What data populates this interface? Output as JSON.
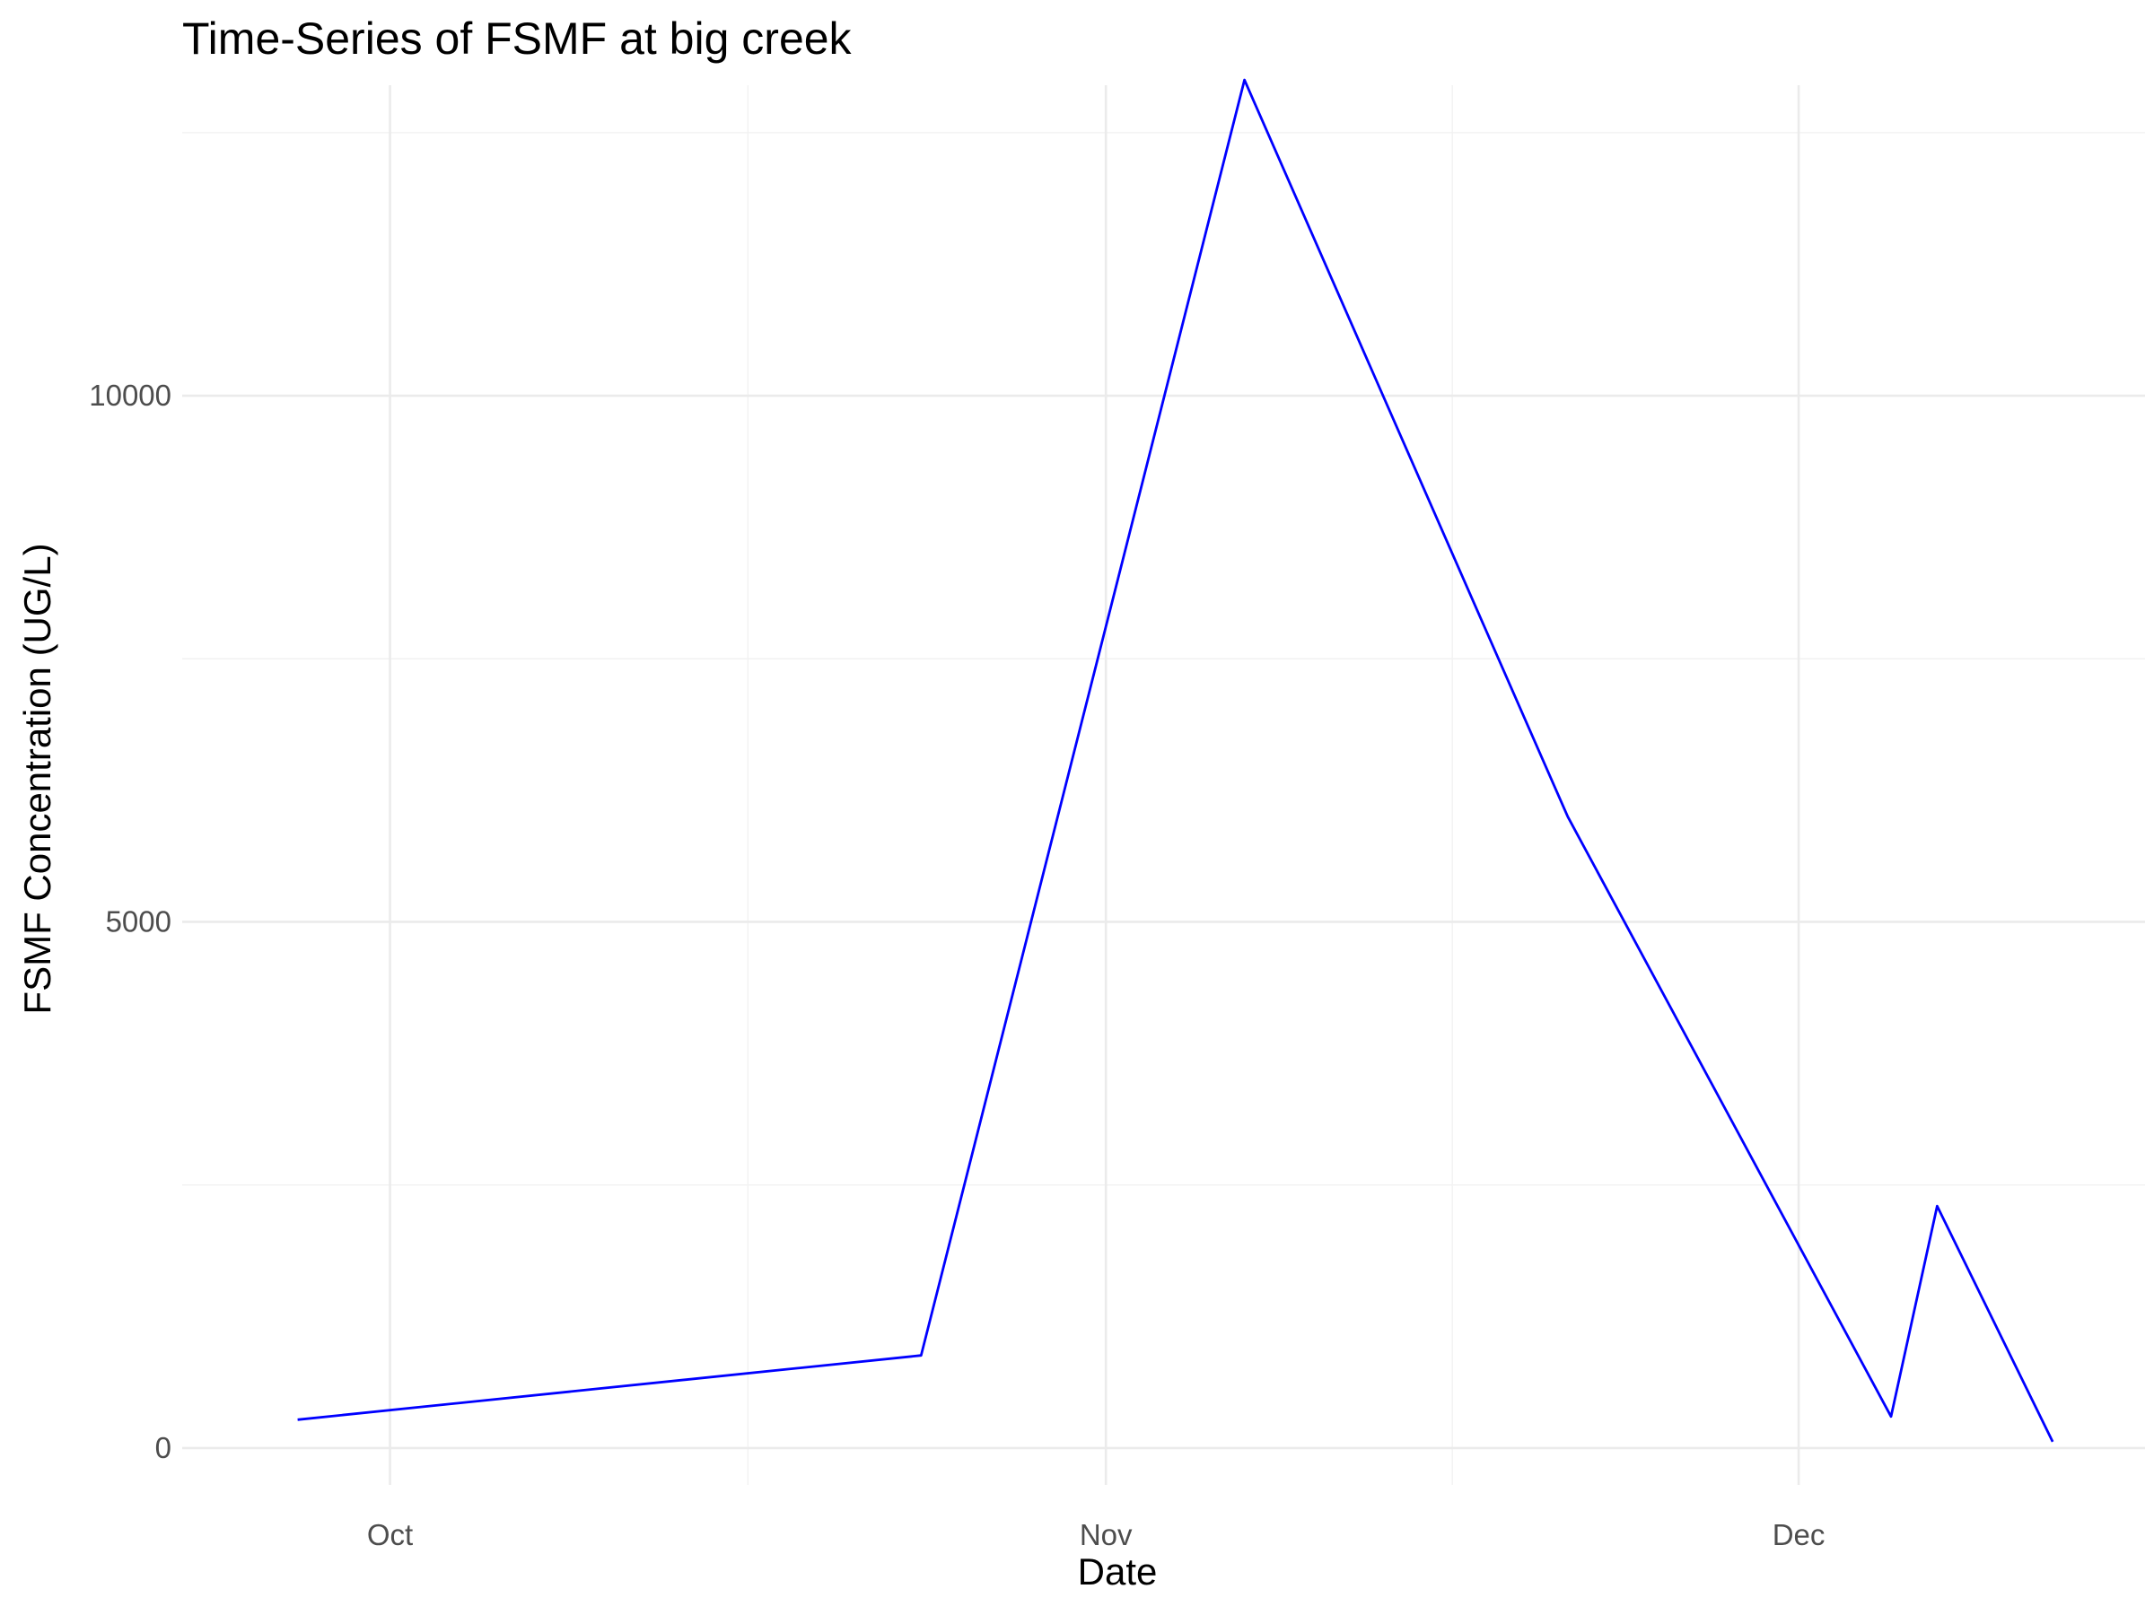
{
  "chart_data": {
    "type": "line",
    "title": "Time-Series of FSMF at big creek",
    "xlabel": "Date",
    "ylabel": "FSMF Concentration (UG/L)",
    "x_ticks": [
      {
        "label": "Oct",
        "date": "2023-10-01"
      },
      {
        "label": "Nov",
        "date": "2023-11-01"
      },
      {
        "label": "Dec",
        "date": "2023-12-01"
      }
    ],
    "y_ticks": [
      0,
      5000,
      10000
    ],
    "xlim": [
      "2023-09-22",
      "2023-12-16"
    ],
    "ylim": [
      -350,
      12950
    ],
    "grid": true,
    "series": [
      {
        "color": "#0000ff",
        "points": [
          {
            "x": "2023-09-27",
            "y": 270
          },
          {
            "x": "2023-10-24",
            "y": 880
          },
          {
            "x": "2023-11-07",
            "y": 13000
          },
          {
            "x": "2023-11-21",
            "y": 6000
          },
          {
            "x": "2023-12-05",
            "y": 300
          },
          {
            "x": "2023-12-07",
            "y": 2300
          },
          {
            "x": "2023-12-12",
            "y": 60
          }
        ]
      }
    ]
  }
}
